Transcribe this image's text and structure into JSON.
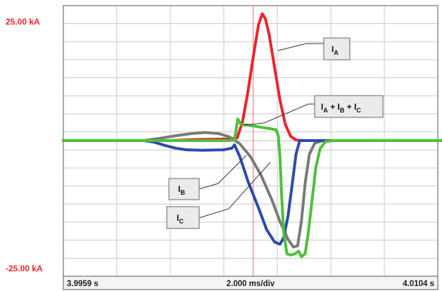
{
  "chart_data": {
    "type": "line",
    "y_top_label": "25.00 kA",
    "y_bottom_label": "-25.00 kA",
    "x_left_label": "3.9959 s",
    "x_center_label": "2.000 ms/div",
    "x_right_label": "4.0104 s",
    "ylim": [
      -25,
      25
    ],
    "x_div_range": [
      0,
      7.25
    ],
    "grid": true,
    "cursor_x_div": 3.55,
    "colors": {
      "label_red": "#e8262c",
      "ia": "#e8262c",
      "ib": "#2e4aa8",
      "ic": "#7a7a7a",
      "sum": "#4fbf3a",
      "grid": "#c8c8c8",
      "cursor": "#ee6a6a"
    },
    "series": [
      {
        "name": "IA",
        "points": [
          [
            0,
            0
          ],
          [
            1.5,
            0
          ],
          [
            2.0,
            0
          ],
          [
            2.5,
            0.2
          ],
          [
            3.1,
            0.3
          ],
          [
            3.25,
            0.5
          ],
          [
            3.35,
            3.5
          ],
          [
            3.45,
            9.0
          ],
          [
            3.55,
            15.5
          ],
          [
            3.65,
            21.5
          ],
          [
            3.72,
            23.5
          ],
          [
            3.78,
            22.5
          ],
          [
            3.85,
            19.5
          ],
          [
            3.95,
            13.5
          ],
          [
            4.05,
            7.5
          ],
          [
            4.15,
            3.0
          ],
          [
            4.25,
            0.8
          ],
          [
            4.35,
            0.1
          ],
          [
            4.5,
            0
          ],
          [
            7.25,
            0
          ]
        ]
      },
      {
        "name": "IB",
        "points": [
          [
            0,
            0
          ],
          [
            1.5,
            0
          ],
          [
            1.7,
            -0.3
          ],
          [
            1.9,
            -0.9
          ],
          [
            2.1,
            -1.4
          ],
          [
            2.3,
            -1.7
          ],
          [
            2.6,
            -1.8
          ],
          [
            3.0,
            -1.7
          ],
          [
            3.15,
            -1.4
          ],
          [
            3.2,
            -0.8
          ],
          [
            3.3,
            -3.0
          ],
          [
            3.45,
            -7.5
          ],
          [
            3.65,
            -12.5
          ],
          [
            3.8,
            -16.5
          ],
          [
            3.95,
            -18.8
          ],
          [
            4.05,
            -19.2
          ],
          [
            4.12,
            -18.0
          ],
          [
            4.2,
            -14.0
          ],
          [
            4.28,
            -8.0
          ],
          [
            4.35,
            -2.5
          ],
          [
            4.42,
            0
          ],
          [
            7.25,
            0
          ]
        ]
      },
      {
        "name": "IC",
        "points": [
          [
            0,
            0
          ],
          [
            1.5,
            0
          ],
          [
            1.8,
            0.4
          ],
          [
            2.1,
            0.9
          ],
          [
            2.4,
            1.3
          ],
          [
            2.65,
            1.5
          ],
          [
            2.9,
            1.3
          ],
          [
            3.1,
            0.7
          ],
          [
            3.3,
            -0.6
          ],
          [
            3.5,
            -3.0
          ],
          [
            3.7,
            -6.5
          ],
          [
            3.9,
            -11.0
          ],
          [
            4.05,
            -15.0
          ],
          [
            4.2,
            -18.3
          ],
          [
            4.3,
            -19.7
          ],
          [
            4.38,
            -19.5
          ],
          [
            4.45,
            -15.0
          ],
          [
            4.52,
            -8.0
          ],
          [
            4.6,
            -2.5
          ],
          [
            4.7,
            -0.5
          ],
          [
            4.85,
            0
          ],
          [
            7.25,
            0
          ]
        ]
      },
      {
        "name": "IA + IB + IC",
        "points": [
          [
            0,
            0
          ],
          [
            3.1,
            0
          ],
          [
            3.2,
            0.1
          ],
          [
            3.26,
            4.0
          ],
          [
            3.32,
            3.0
          ],
          [
            3.5,
            2.8
          ],
          [
            3.8,
            2.3
          ],
          [
            3.98,
            2.0
          ],
          [
            4.02,
            0.8
          ],
          [
            4.05,
            -3.0
          ],
          [
            4.08,
            -10.0
          ],
          [
            4.12,
            -17.0
          ],
          [
            4.18,
            -21.0
          ],
          [
            4.25,
            -21.2
          ],
          [
            4.32,
            -21.0
          ],
          [
            4.4,
            -20.5
          ],
          [
            4.45,
            -21.5
          ],
          [
            4.52,
            -21.0
          ],
          [
            4.58,
            -17.0
          ],
          [
            4.65,
            -11.0
          ],
          [
            4.72,
            -5.0
          ],
          [
            4.8,
            -1.5
          ],
          [
            4.9,
            -0.2
          ],
          [
            5.05,
            0
          ],
          [
            7.25,
            0
          ]
        ]
      }
    ],
    "annotations": {
      "ia": {
        "main": "I",
        "sub": "A"
      },
      "ib": {
        "main": "I",
        "sub": "B"
      },
      "ic": {
        "main": "I",
        "sub": "C"
      },
      "sum": [
        {
          "main": "I",
          "sub": "A"
        },
        {
          "main": "I",
          "sub": "B"
        },
        {
          "main": "I",
          "sub": "C"
        }
      ]
    }
  }
}
